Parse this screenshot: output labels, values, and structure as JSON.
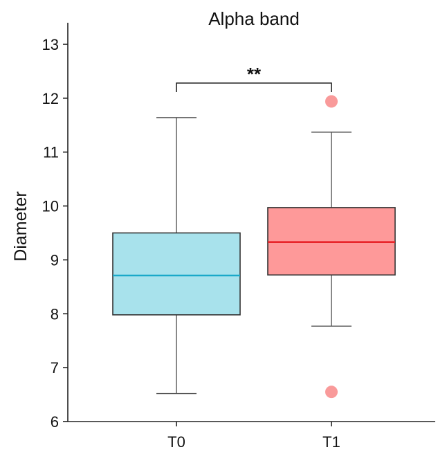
{
  "chart_data": {
    "type": "box",
    "title": "Alpha band",
    "xlabel": "",
    "ylabel": "Diameter",
    "ylim": [
      6,
      13.4
    ],
    "yticks": [
      6,
      7,
      8,
      9,
      10,
      11,
      12,
      13
    ],
    "ytick_labels": [
      "6",
      "7",
      "8",
      "9",
      "10",
      "11",
      "12",
      "13"
    ],
    "grid": false,
    "categories": [
      "T0",
      "T1"
    ],
    "boxes": [
      {
        "category": "T0",
        "whisker_low": 6.52,
        "q1": 7.98,
        "median": 8.71,
        "q3": 9.5,
        "whisker_high": 11.64,
        "outliers": [],
        "fill_color": "#a8e2ec",
        "line_color": "#1aa9c9"
      },
      {
        "category": "T1",
        "whisker_low": 7.77,
        "q1": 8.72,
        "median": 9.33,
        "q3": 9.97,
        "whisker_high": 11.37,
        "outliers": [
          11.94,
          6.55
        ],
        "fill_color": "#fe9999",
        "line_color": "#e8252a",
        "outlier_color": "#f99a9a"
      }
    ],
    "significance": {
      "from": "T0",
      "to": "T1",
      "y": 12.3,
      "label": "**"
    }
  }
}
